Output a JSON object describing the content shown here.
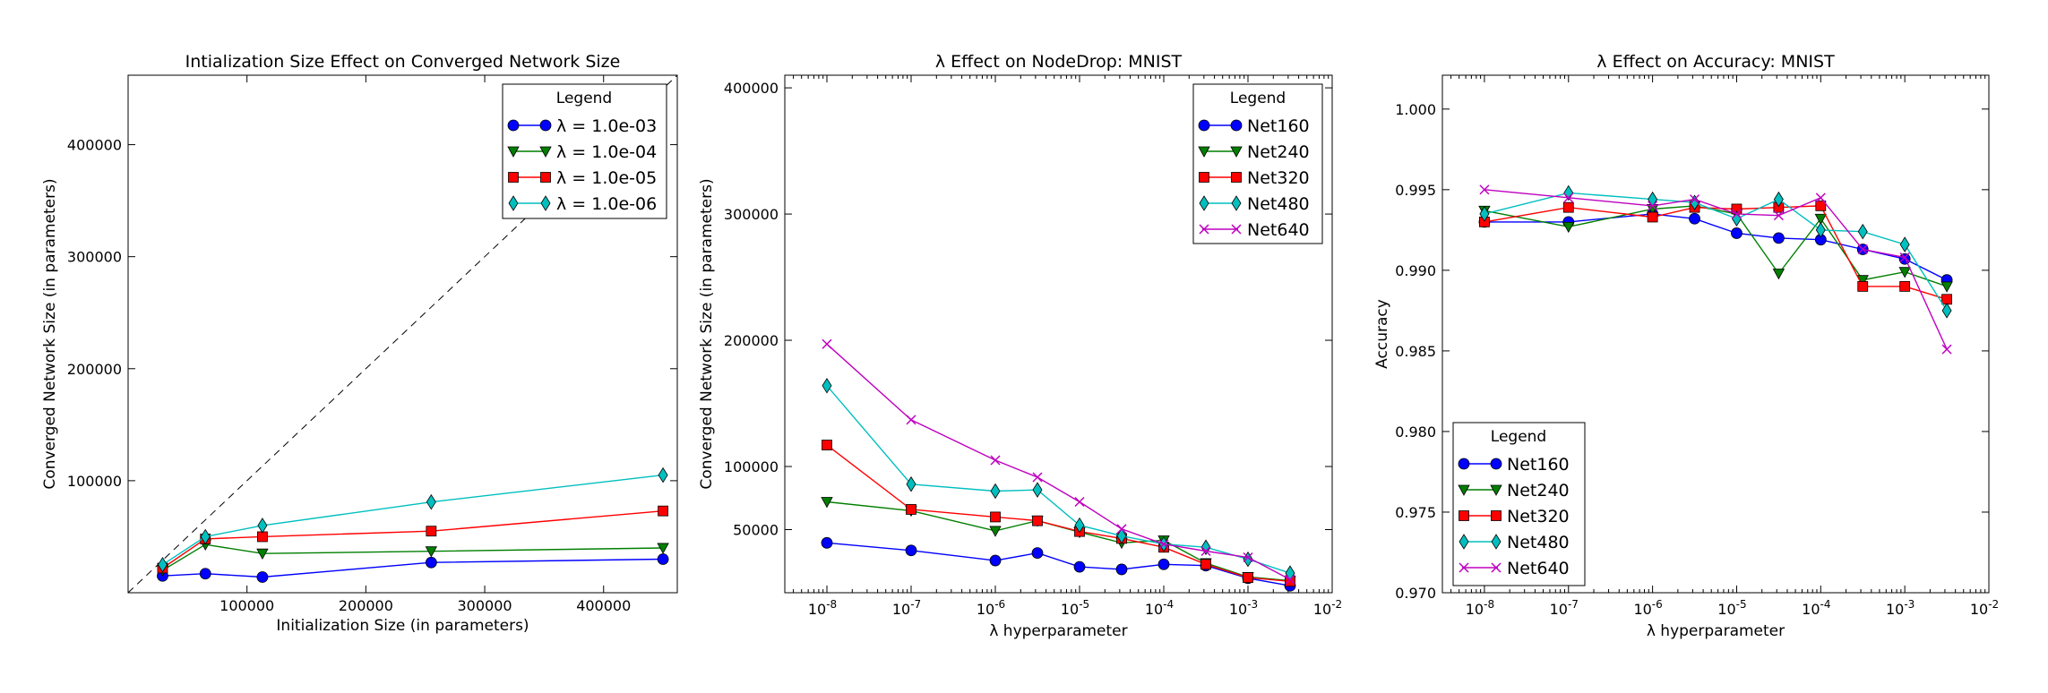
{
  "chart_data": [
    {
      "id": "panel1",
      "type": "line",
      "title": "Intialization Size Effect on Converged Network Size",
      "xlabel": "Initialization Size (in parameters)",
      "ylabel": "Converged Network Size (in parameters)",
      "xscale": "linear",
      "xlim": [
        0,
        462000
      ],
      "ylim": [
        0,
        462000
      ],
      "xticks": [
        100000,
        200000,
        300000,
        400000
      ],
      "xtick_labels": [
        "100000",
        "200000",
        "300000",
        "400000"
      ],
      "yticks": [
        100000,
        200000,
        300000,
        400000
      ],
      "ytick_labels": [
        "100000",
        "200000",
        "300000",
        "400000"
      ],
      "reference_line": "y = x (dashed)",
      "legend": {
        "title": "Legend",
        "position": "top-right"
      },
      "x": [
        29000,
        65000,
        113000,
        255000,
        450000
      ],
      "series": [
        {
          "name": "λ = 1.0e-03",
          "color": "#0000ff",
          "marker": "circle",
          "values": [
            15000,
            17000,
            14000,
            27000,
            30000
          ]
        },
        {
          "name": "λ = 1.0e-04",
          "color": "#007f00",
          "marker": "triangle-down",
          "values": [
            20000,
            43000,
            35000,
            37000,
            40000
          ]
        },
        {
          "name": "λ = 1.0e-05",
          "color": "#ff0000",
          "marker": "square",
          "values": [
            22000,
            48000,
            50000,
            55000,
            73000
          ]
        },
        {
          "name": "λ = 1.0e-06",
          "color": "#00bfbf",
          "marker": "diamond",
          "values": [
            25000,
            50000,
            60000,
            81000,
            105000
          ]
        }
      ]
    },
    {
      "id": "panel2",
      "type": "line",
      "title": "λ Effect on NodeDrop: MNIST",
      "xlabel": "λ hyperparameter",
      "ylabel": "Converged Network Size (in parameters)",
      "xscale": "log",
      "xlim_exp": [
        -8.5,
        -2
      ],
      "ylim": [
        0,
        410000
      ],
      "xtick_exps": [
        -8,
        -7,
        -6,
        -5,
        -4,
        -3,
        -2
      ],
      "xtick_labels": [
        "10^-8",
        "10^-7",
        "10^-6",
        "10^-5",
        "10^-4",
        "10^-3",
        "10^-2"
      ],
      "yticks": [
        50000,
        100000,
        200000,
        300000,
        400000
      ],
      "ytick_labels": [
        "50000",
        "100000",
        "200000",
        "300000",
        "400000"
      ],
      "legend": {
        "title": "Legend",
        "position": "top-right"
      },
      "x_exp": [
        -8,
        -7,
        -6,
        -5.5,
        -5,
        -4.5,
        -4,
        -3.5,
        -3,
        -2.5
      ],
      "series": [
        {
          "name": "Net160",
          "color": "#0000ff",
          "marker": "circle",
          "values": [
            39500,
            33500,
            25500,
            31500,
            20500,
            18500,
            22500,
            21500,
            11500,
            5500
          ]
        },
        {
          "name": "Net240",
          "color": "#007f00",
          "marker": "triangle-down",
          "values": [
            72000,
            65000,
            49000,
            57000,
            48000,
            39500,
            41500,
            23500,
            12500,
            9500
          ]
        },
        {
          "name": "Net320",
          "color": "#ff0000",
          "marker": "square",
          "values": [
            117000,
            66000,
            60000,
            57000,
            48500,
            43000,
            36000,
            22500,
            12000,
            9000
          ]
        },
        {
          "name": "Net480",
          "color": "#00bfbf",
          "marker": "diamond",
          "values": [
            164000,
            86000,
            80500,
            81500,
            53500,
            45000,
            38500,
            36000,
            26500,
            15500
          ]
        },
        {
          "name": "Net640",
          "color": "#bf00bf",
          "marker": "x",
          "values": [
            197000,
            137000,
            105000,
            91500,
            72000,
            50500,
            38500,
            33000,
            28000,
            10500
          ]
        }
      ]
    },
    {
      "id": "panel3",
      "type": "line",
      "title": "λ Effect on Accuracy: MNIST",
      "xlabel": "λ hyperparameter",
      "ylabel": "Accuracy",
      "xscale": "log",
      "xlim_exp": [
        -8.5,
        -2
      ],
      "ylim": [
        0.97,
        1.0021
      ],
      "xtick_exps": [
        -8,
        -7,
        -6,
        -5,
        -4,
        -3,
        -2
      ],
      "xtick_labels": [
        "10^-8",
        "10^-7",
        "10^-6",
        "10^-5",
        "10^-4",
        "10^-3",
        "10^-2"
      ],
      "yticks": [
        0.97,
        0.975,
        0.98,
        0.985,
        0.99,
        0.995,
        1.0
      ],
      "ytick_labels": [
        "0.970",
        "0.975",
        "0.980",
        "0.985",
        "0.990",
        "0.995",
        "1.000"
      ],
      "legend": {
        "title": "Legend",
        "position": "lower-left"
      },
      "x_exp": [
        -8,
        -7,
        -6,
        -5.5,
        -5,
        -4.5,
        -4,
        -3.5,
        -3,
        -2.5
      ],
      "series": [
        {
          "name": "Net160",
          "color": "#0000ff",
          "marker": "circle",
          "values": [
            0.993,
            0.993,
            0.9935,
            0.9932,
            0.9923,
            0.992,
            0.9919,
            0.9913,
            0.9907,
            0.9894
          ]
        },
        {
          "name": "Net240",
          "color": "#007f00",
          "marker": "triangle-down",
          "values": [
            0.9937,
            0.9927,
            0.9938,
            0.994,
            0.9935,
            0.9898,
            0.9932,
            0.9894,
            0.9899,
            0.989
          ]
        },
        {
          "name": "Net320",
          "color": "#ff0000",
          "marker": "square",
          "values": [
            0.993,
            0.9939,
            0.9933,
            0.9939,
            0.9938,
            0.9939,
            0.994,
            0.989,
            0.989,
            0.9882
          ]
        },
        {
          "name": "Net480",
          "color": "#00bfbf",
          "marker": "diamond",
          "values": [
            0.9935,
            0.9948,
            0.9944,
            0.9942,
            0.9932,
            0.9944,
            0.9925,
            0.9924,
            0.9916,
            0.9875
          ]
        },
        {
          "name": "Net640",
          "color": "#bf00bf",
          "marker": "x",
          "values": [
            0.995,
            0.9945,
            0.994,
            0.9944,
            0.9935,
            0.9934,
            0.9945,
            0.9913,
            0.9908,
            0.9851
          ]
        }
      ]
    }
  ]
}
